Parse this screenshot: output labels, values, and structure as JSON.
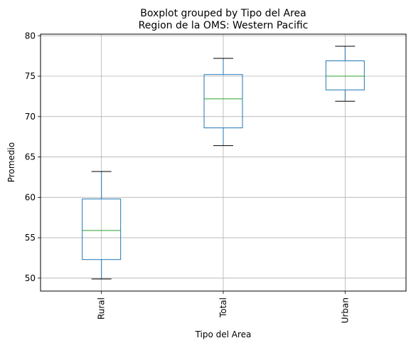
{
  "chart_data": {
    "type": "boxplot",
    "title": "Boxplot grouped by Tipo del Area",
    "subtitle": "Region de la OMS: Western Pacific",
    "xlabel": "Tipo del Area",
    "ylabel": "Promedio",
    "ylim": [
      48.4,
      80.2
    ],
    "yticks": [
      50,
      55,
      60,
      65,
      70,
      75,
      80
    ],
    "grid": true,
    "categories": [
      "Rural",
      "Total",
      "Urban"
    ],
    "boxes": [
      {
        "category": "Rural",
        "whisker_low": 49.9,
        "q1": 52.3,
        "median": 55.9,
        "q3": 59.8,
        "whisker_high": 63.2
      },
      {
        "category": "Total",
        "whisker_low": 66.4,
        "q1": 68.6,
        "median": 72.2,
        "q3": 75.2,
        "whisker_high": 77.2
      },
      {
        "category": "Urban",
        "whisker_low": 71.9,
        "q1": 73.3,
        "median": 75.0,
        "q3": 76.9,
        "whisker_high": 78.7
      }
    ],
    "colors": {
      "box": "#1f77b4",
      "median": "#2ca02c",
      "whisker_cap": "#000000",
      "grid": "#b0b0b0"
    }
  }
}
